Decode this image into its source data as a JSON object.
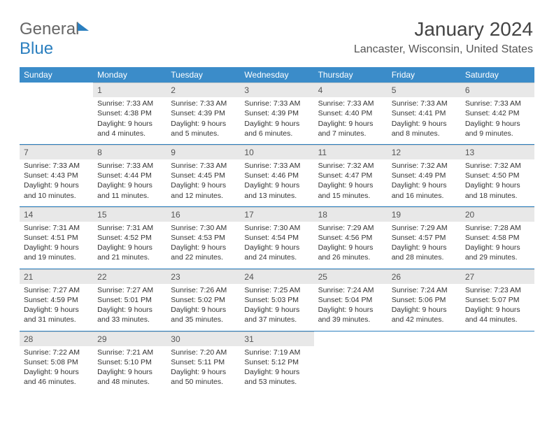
{
  "logo": {
    "part1": "General",
    "part2": "Blue"
  },
  "title": "January 2024",
  "subtitle": "Lancaster, Wisconsin, United States",
  "colors": {
    "header_bg": "#3b8cc9",
    "daynum_bg": "#e8e8e8",
    "sep": "#2b7fbf"
  },
  "daynames": [
    "Sunday",
    "Monday",
    "Tuesday",
    "Wednesday",
    "Thursday",
    "Friday",
    "Saturday"
  ],
  "weeks": [
    [
      null,
      {
        "n": "1",
        "sr": "Sunrise: 7:33 AM",
        "ss": "Sunset: 4:38 PM",
        "d1": "Daylight: 9 hours",
        "d2": "and 4 minutes."
      },
      {
        "n": "2",
        "sr": "Sunrise: 7:33 AM",
        "ss": "Sunset: 4:39 PM",
        "d1": "Daylight: 9 hours",
        "d2": "and 5 minutes."
      },
      {
        "n": "3",
        "sr": "Sunrise: 7:33 AM",
        "ss": "Sunset: 4:39 PM",
        "d1": "Daylight: 9 hours",
        "d2": "and 6 minutes."
      },
      {
        "n": "4",
        "sr": "Sunrise: 7:33 AM",
        "ss": "Sunset: 4:40 PM",
        "d1": "Daylight: 9 hours",
        "d2": "and 7 minutes."
      },
      {
        "n": "5",
        "sr": "Sunrise: 7:33 AM",
        "ss": "Sunset: 4:41 PM",
        "d1": "Daylight: 9 hours",
        "d2": "and 8 minutes."
      },
      {
        "n": "6",
        "sr": "Sunrise: 7:33 AM",
        "ss": "Sunset: 4:42 PM",
        "d1": "Daylight: 9 hours",
        "d2": "and 9 minutes."
      }
    ],
    [
      {
        "n": "7",
        "sr": "Sunrise: 7:33 AM",
        "ss": "Sunset: 4:43 PM",
        "d1": "Daylight: 9 hours",
        "d2": "and 10 minutes."
      },
      {
        "n": "8",
        "sr": "Sunrise: 7:33 AM",
        "ss": "Sunset: 4:44 PM",
        "d1": "Daylight: 9 hours",
        "d2": "and 11 minutes."
      },
      {
        "n": "9",
        "sr": "Sunrise: 7:33 AM",
        "ss": "Sunset: 4:45 PM",
        "d1": "Daylight: 9 hours",
        "d2": "and 12 minutes."
      },
      {
        "n": "10",
        "sr": "Sunrise: 7:33 AM",
        "ss": "Sunset: 4:46 PM",
        "d1": "Daylight: 9 hours",
        "d2": "and 13 minutes."
      },
      {
        "n": "11",
        "sr": "Sunrise: 7:32 AM",
        "ss": "Sunset: 4:47 PM",
        "d1": "Daylight: 9 hours",
        "d2": "and 15 minutes."
      },
      {
        "n": "12",
        "sr": "Sunrise: 7:32 AM",
        "ss": "Sunset: 4:49 PM",
        "d1": "Daylight: 9 hours",
        "d2": "and 16 minutes."
      },
      {
        "n": "13",
        "sr": "Sunrise: 7:32 AM",
        "ss": "Sunset: 4:50 PM",
        "d1": "Daylight: 9 hours",
        "d2": "and 18 minutes."
      }
    ],
    [
      {
        "n": "14",
        "sr": "Sunrise: 7:31 AM",
        "ss": "Sunset: 4:51 PM",
        "d1": "Daylight: 9 hours",
        "d2": "and 19 minutes."
      },
      {
        "n": "15",
        "sr": "Sunrise: 7:31 AM",
        "ss": "Sunset: 4:52 PM",
        "d1": "Daylight: 9 hours",
        "d2": "and 21 minutes."
      },
      {
        "n": "16",
        "sr": "Sunrise: 7:30 AM",
        "ss": "Sunset: 4:53 PM",
        "d1": "Daylight: 9 hours",
        "d2": "and 22 minutes."
      },
      {
        "n": "17",
        "sr": "Sunrise: 7:30 AM",
        "ss": "Sunset: 4:54 PM",
        "d1": "Daylight: 9 hours",
        "d2": "and 24 minutes."
      },
      {
        "n": "18",
        "sr": "Sunrise: 7:29 AM",
        "ss": "Sunset: 4:56 PM",
        "d1": "Daylight: 9 hours",
        "d2": "and 26 minutes."
      },
      {
        "n": "19",
        "sr": "Sunrise: 7:29 AM",
        "ss": "Sunset: 4:57 PM",
        "d1": "Daylight: 9 hours",
        "d2": "and 28 minutes."
      },
      {
        "n": "20",
        "sr": "Sunrise: 7:28 AM",
        "ss": "Sunset: 4:58 PM",
        "d1": "Daylight: 9 hours",
        "d2": "and 29 minutes."
      }
    ],
    [
      {
        "n": "21",
        "sr": "Sunrise: 7:27 AM",
        "ss": "Sunset: 4:59 PM",
        "d1": "Daylight: 9 hours",
        "d2": "and 31 minutes."
      },
      {
        "n": "22",
        "sr": "Sunrise: 7:27 AM",
        "ss": "Sunset: 5:01 PM",
        "d1": "Daylight: 9 hours",
        "d2": "and 33 minutes."
      },
      {
        "n": "23",
        "sr": "Sunrise: 7:26 AM",
        "ss": "Sunset: 5:02 PM",
        "d1": "Daylight: 9 hours",
        "d2": "and 35 minutes."
      },
      {
        "n": "24",
        "sr": "Sunrise: 7:25 AM",
        "ss": "Sunset: 5:03 PM",
        "d1": "Daylight: 9 hours",
        "d2": "and 37 minutes."
      },
      {
        "n": "25",
        "sr": "Sunrise: 7:24 AM",
        "ss": "Sunset: 5:04 PM",
        "d1": "Daylight: 9 hours",
        "d2": "and 39 minutes."
      },
      {
        "n": "26",
        "sr": "Sunrise: 7:24 AM",
        "ss": "Sunset: 5:06 PM",
        "d1": "Daylight: 9 hours",
        "d2": "and 42 minutes."
      },
      {
        "n": "27",
        "sr": "Sunrise: 7:23 AM",
        "ss": "Sunset: 5:07 PM",
        "d1": "Daylight: 9 hours",
        "d2": "and 44 minutes."
      }
    ],
    [
      {
        "n": "28",
        "sr": "Sunrise: 7:22 AM",
        "ss": "Sunset: 5:08 PM",
        "d1": "Daylight: 9 hours",
        "d2": "and 46 minutes."
      },
      {
        "n": "29",
        "sr": "Sunrise: 7:21 AM",
        "ss": "Sunset: 5:10 PM",
        "d1": "Daylight: 9 hours",
        "d2": "and 48 minutes."
      },
      {
        "n": "30",
        "sr": "Sunrise: 7:20 AM",
        "ss": "Sunset: 5:11 PM",
        "d1": "Daylight: 9 hours",
        "d2": "and 50 minutes."
      },
      {
        "n": "31",
        "sr": "Sunrise: 7:19 AM",
        "ss": "Sunset: 5:12 PM",
        "d1": "Daylight: 9 hours",
        "d2": "and 53 minutes."
      },
      null,
      null,
      null
    ]
  ]
}
